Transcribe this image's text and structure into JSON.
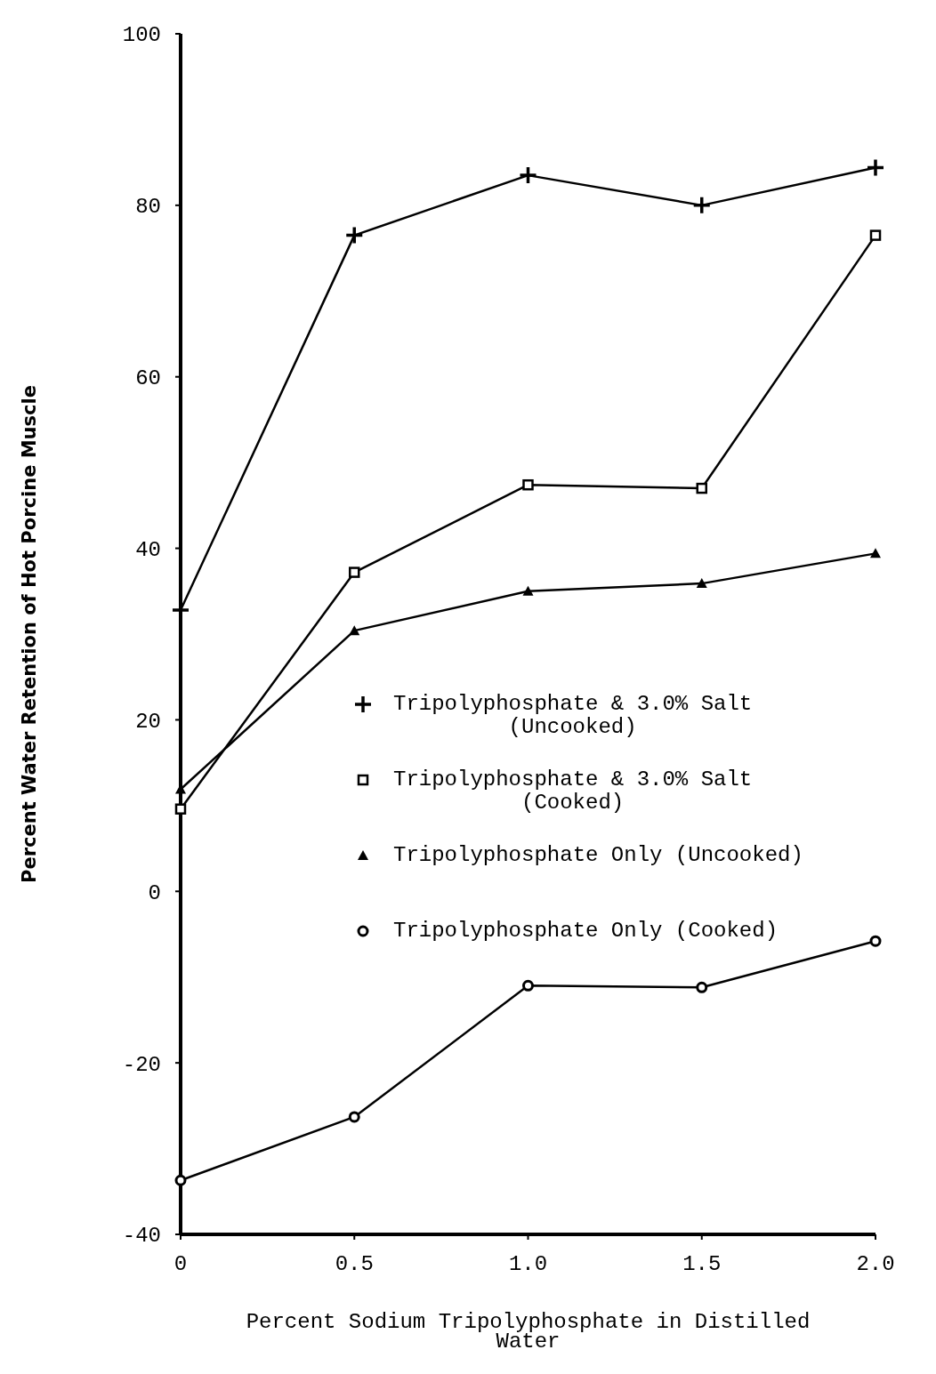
{
  "chart_data": {
    "type": "line",
    "xlabel": "Percent Sodium Tripolyphosphate in Distilled Water",
    "ylabel": "Percent Water Retention of Hot Porcine Muscle",
    "x": [
      0,
      0.5,
      1.0,
      1.5,
      2.0
    ],
    "xlim": [
      0,
      2.0
    ],
    "xticks": [
      {
        "value": 0,
        "label": "0"
      },
      {
        "value": 0.5,
        "label": "0.5"
      },
      {
        "value": 1,
        "label": "1.0"
      },
      {
        "value": 1.5,
        "label": "1.5"
      },
      {
        "value": 2,
        "label": "2.0"
      }
    ],
    "ylim": [
      -40,
      100
    ],
    "yticks": [
      -40,
      -20,
      0,
      20,
      40,
      60,
      80,
      100
    ],
    "grid": false,
    "legend": "right",
    "line_style": "solid",
    "series": [
      {
        "name": "Tripolyphosphate & 3.0% Salt (Uncooked)",
        "color": "#000000",
        "marker": "cross",
        "values": [
          32.8,
          76.5,
          83.5,
          80,
          84.4
        ]
      },
      {
        "name": "Tripolyphosphate & 3.0% Salt (Cooked)",
        "color": "#000000",
        "marker": "square",
        "values": [
          9.6,
          37.2,
          47.4,
          47,
          76.5
        ]
      },
      {
        "name": "Tripolyphosphate Only (Uncooked)",
        "color": "#000000",
        "marker": "triangle",
        "values": [
          11.9,
          30.4,
          35,
          35.9,
          39.4
        ]
      },
      {
        "name": "Tripolyphosphate Only (Cooked)",
        "color": "#000000",
        "marker": "circle",
        "values": [
          -33.7,
          -26.3,
          -11,
          -11.2,
          -5.8
        ]
      }
    ]
  }
}
